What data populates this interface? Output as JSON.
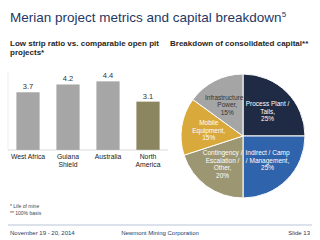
{
  "slide": {
    "title": "Merian project metrics and capital breakdown",
    "title_note": "5",
    "notes": [
      "* Life of mine",
      "** 100% basis"
    ],
    "footer_left": "November 19 - 20, 2014",
    "footer_center": "Newmont Mining Corporation",
    "footer_right": "Slide 13"
  },
  "chart_data": [
    {
      "type": "bar",
      "title": "Low strip ratio vs. comparable open pit projects*",
      "categories": [
        "West Africa",
        "Guiana Shield",
        "Australia",
        "North America"
      ],
      "values": [
        3.7,
        4.2,
        4.4,
        3.1
      ],
      "colors": [
        "#a6a6a6",
        "#a6a6a6",
        "#a6a6a6",
        "#8c8660"
      ],
      "ylim": [
        0,
        5
      ],
      "data_labels": true,
      "tick_labels": "x",
      "grid": false
    },
    {
      "type": "pie",
      "title": "Breakdown of consolidated capital**",
      "categories": [
        "Process Plant / Tails,",
        "Indirect / Camp / Management,",
        "Contingency / Escalation / Other,",
        "Mobile Equipment,",
        "Infrastructure & Power,"
      ],
      "values": [
        25,
        25,
        20,
        15,
        15
      ],
      "value_labels": [
        "25%",
        "25%",
        "20%",
        "15%",
        "15%"
      ],
      "colors": [
        "#1f2a44",
        "#2f64ad",
        "#9c9672",
        "#d9a93c",
        "#a5a5a5"
      ],
      "data_labels": true
    }
  ]
}
